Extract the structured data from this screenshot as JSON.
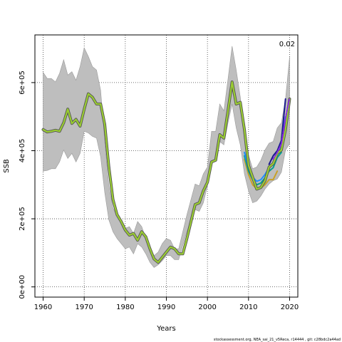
{
  "chart_data": {
    "type": "area",
    "xlabel": "Years",
    "ylabel": "SSB",
    "xlim": [
      1958,
      2022
    ],
    "ylim": [
      -30000,
      740000
    ],
    "x_ticks": [
      1960,
      1970,
      1980,
      1990,
      2000,
      2010,
      2020
    ],
    "y_ticks": [
      0,
      200000,
      400000,
      600000
    ],
    "y_tick_labels": [
      "0e+00",
      "2e+05",
      "4e+05",
      "6e+05"
    ],
    "grid": true,
    "corner_label": "0.02",
    "footer": "stockassessment.org, NEA_sai_21_v5Reca, r14444 , git: c28bdc2a44ad",
    "colors": {
      "band": "#bebebe",
      "band_edge": "#9a9a9a",
      "estimate": "#9acd32",
      "estimate_outline": "#555555",
      "retro_recent": "#1a1a8c",
      "retro_dashed": "#8a2be2",
      "retro_other": [
        "#1e90ff",
        "#00a090",
        "#c9a227"
      ]
    },
    "band": {
      "x": [
        1960,
        1961,
        1962,
        1963,
        1964,
        1965,
        1966,
        1967,
        1968,
        1969,
        1970,
        1971,
        1972,
        1973,
        1974,
        1975,
        1976,
        1977,
        1978,
        1979,
        1980,
        1981,
        1982,
        1983,
        1984,
        1985,
        1986,
        1987,
        1988,
        1989,
        1990,
        1991,
        1992,
        1993,
        1994,
        1995,
        1996,
        1997,
        1998,
        1999,
        2000,
        2001,
        2002,
        2003,
        2004,
        2005,
        2006,
        2007,
        2008,
        2009,
        2010,
        2011,
        2012,
        2013,
        2014,
        2015,
        2016,
        2017,
        2018,
        2019,
        2020
      ],
      "upper": [
        630000,
        612000,
        612000,
        602000,
        627000,
        667000,
        622000,
        632000,
        607000,
        647000,
        702000,
        677000,
        647000,
        637000,
        577000,
        427000,
        297000,
        232000,
        207000,
        192000,
        172000,
        177000,
        157000,
        192000,
        177000,
        142000,
        112000,
        92000,
        102000,
        127000,
        142000,
        137000,
        112000,
        112000,
        162000,
        212000,
        257000,
        302000,
        297000,
        332000,
        352000,
        457000,
        457000,
        537000,
        517000,
        610000,
        707000,
        637000,
        557000,
        457000,
        387000,
        347000,
        352000,
        372000,
        402000,
        422000,
        427000,
        467000,
        482000,
        552000,
        675000
      ],
      "lower": [
        340000,
        342000,
        347000,
        347000,
        367000,
        402000,
        377000,
        392000,
        367000,
        392000,
        457000,
        452000,
        442000,
        437000,
        382000,
        277000,
        197000,
        162000,
        142000,
        127000,
        112000,
        117000,
        97000,
        127000,
        117000,
        97000,
        72000,
        57000,
        65000,
        77000,
        92000,
        92000,
        80000,
        80000,
        122000,
        162000,
        197000,
        227000,
        222000,
        247000,
        297000,
        362000,
        377000,
        427000,
        417000,
        482000,
        537000,
        467000,
        417000,
        332000,
        282000,
        247000,
        252000,
        267000,
        287000,
        302000,
        312000,
        317000,
        337000,
        402000,
        420000
      ]
    },
    "series": [
      {
        "x": [
          1960,
          1961,
          1962,
          1963,
          1964,
          1965,
          1966,
          1967,
          1968,
          1969,
          1970,
          1971,
          1972,
          1973,
          1974,
          1975,
          1976,
          1977,
          1978,
          1979,
          1980,
          1981,
          1982,
          1983,
          1984,
          1985,
          1986,
          1987,
          1988,
          1989,
          1990,
          1991,
          1992,
          1993,
          1994,
          1995,
          1996,
          1997,
          1998,
          1999,
          2000,
          2001,
          2002,
          2003,
          2004,
          2005,
          2006,
          2007,
          2008,
          2009,
          2010,
          2011,
          2012,
          2013,
          2014,
          2015,
          2016,
          2017,
          2018,
          2019,
          2020
        ],
        "values": [
          462000,
          455000,
          457000,
          460000,
          457000,
          482000,
          522000,
          480000,
          492000,
          472000,
          522000,
          567000,
          557000,
          537000,
          537000,
          477000,
          352000,
          257000,
          212000,
          192000,
          167000,
          152000,
          157000,
          137000,
          162000,
          147000,
          112000,
          82000,
          72000,
          87000,
          102000,
          117000,
          112000,
          97000,
          97000,
          142000,
          192000,
          242000,
          247000,
          282000,
          307000,
          367000,
          372000,
          447000,
          437000,
          517000,
          602000,
          537000,
          542000,
          462000,
          357000,
          322000,
          287000,
          292000,
          312000,
          352000,
          362000,
          392000,
          402000,
          462000,
          552000
        ]
      },
      {
        "x": [
          2009,
          2010,
          2011,
          2012,
          2013,
          2014,
          2015,
          2016,
          2017,
          2018,
          2019
        ],
        "values": [
          395000,
          350000,
          322000,
          310000,
          315000,
          330000,
          350000,
          360000,
          390000,
          420000,
          500000
        ]
      },
      {
        "x": [
          2009,
          2010,
          2011,
          2012,
          2013,
          2014,
          2015,
          2016,
          2017,
          2018
        ],
        "values": [
          385000,
          340000,
          315000,
          300000,
          305000,
          320000,
          340000,
          350000,
          380000,
          395000
        ]
      },
      {
        "x": [
          2009,
          2010,
          2011,
          2012,
          2013,
          2014,
          2015,
          2016,
          2017
        ],
        "values": [
          375000,
          330000,
          300000,
          288000,
          290000,
          300000,
          315000,
          315000,
          340000
        ]
      },
      {
        "x": [
          2015,
          2016,
          2017,
          2018,
          2019
        ],
        "values": [
          360000,
          385000,
          400000,
          430000,
          552000
        ]
      },
      {
        "x": [
          2016,
          2017,
          2018,
          2019,
          2020
        ],
        "values": [
          375000,
          395000,
          420000,
          495000,
          555000
        ]
      }
    ]
  }
}
